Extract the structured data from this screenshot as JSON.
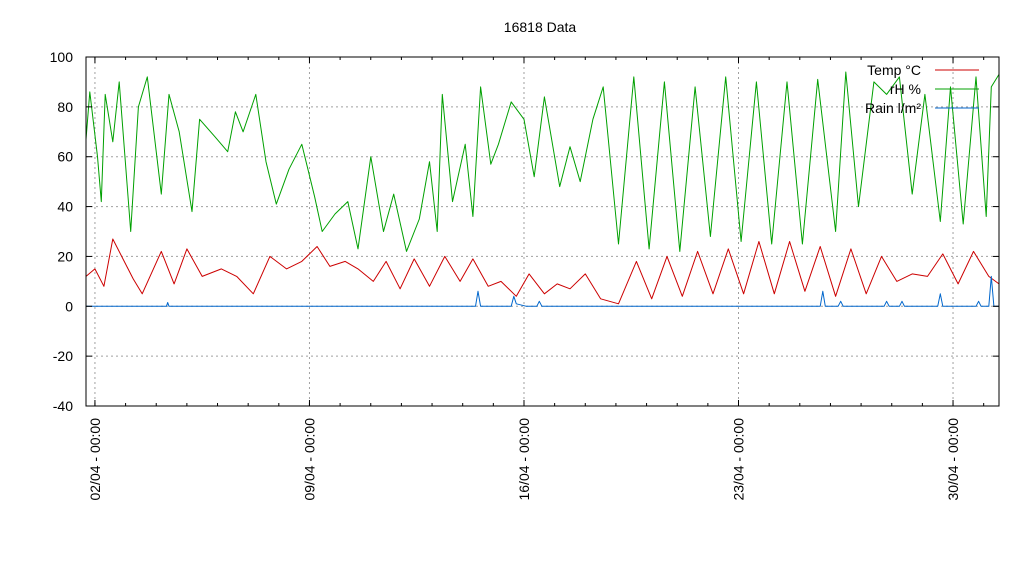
{
  "chart_data": {
    "type": "line",
    "title": "16818 Data",
    "xlabel": "",
    "ylabel": "",
    "ylim": [
      -40,
      100
    ],
    "yticks": [
      -40,
      -20,
      0,
      20,
      40,
      60,
      80,
      100
    ],
    "x_range": [
      "2022-04-01T17:00",
      "2022-05-01T12:00"
    ],
    "xticks": [
      {
        "date": "2022-04-02T00:00",
        "label": "02/04 - 00:00"
      },
      {
        "date": "2022-04-09T00:00",
        "label": "09/04 - 00:00"
      },
      {
        "date": "2022-04-16T00:00",
        "label": "16/04 - 00:00"
      },
      {
        "date": "2022-04-23T00:00",
        "label": "23/04 - 00:00"
      },
      {
        "date": "2022-04-30T00:00",
        "label": "30/04 - 00:00"
      }
    ],
    "grid": true,
    "legend_position": "top-right",
    "series": [
      {
        "name": "Temp °C",
        "color": "#cc0000",
        "points": [
          [
            "2022-04-01T17:00",
            12
          ],
          [
            "2022-04-02T00:00",
            15
          ],
          [
            "2022-04-02T07:00",
            8
          ],
          [
            "2022-04-02T14:00",
            27
          ],
          [
            "2022-04-03T06:00",
            11
          ],
          [
            "2022-04-03T13:00",
            5
          ],
          [
            "2022-04-04T04:00",
            22
          ],
          [
            "2022-04-04T14:00",
            9
          ],
          [
            "2022-04-05T00:00",
            23
          ],
          [
            "2022-04-05T12:00",
            12
          ],
          [
            "2022-04-06T03:00",
            15
          ],
          [
            "2022-04-06T15:00",
            12
          ],
          [
            "2022-04-07T04:00",
            5
          ],
          [
            "2022-04-07T17:00",
            20
          ],
          [
            "2022-04-08T06:00",
            15
          ],
          [
            "2022-04-08T18:00",
            18
          ],
          [
            "2022-04-09T06:00",
            24
          ],
          [
            "2022-04-09T16:00",
            16
          ],
          [
            "2022-04-10T04:00",
            18
          ],
          [
            "2022-04-10T14:00",
            15
          ],
          [
            "2022-04-11T02:00",
            10
          ],
          [
            "2022-04-11T12:00",
            18
          ],
          [
            "2022-04-11T23:00",
            7
          ],
          [
            "2022-04-12T10:00",
            19
          ],
          [
            "2022-04-12T22:00",
            8
          ],
          [
            "2022-04-13T10:00",
            20
          ],
          [
            "2022-04-13T22:00",
            10
          ],
          [
            "2022-04-14T08:00",
            19
          ],
          [
            "2022-04-14T20:00",
            8
          ],
          [
            "2022-04-15T06:00",
            10
          ],
          [
            "2022-04-15T18:00",
            4
          ],
          [
            "2022-04-16T04:00",
            13
          ],
          [
            "2022-04-16T16:00",
            5
          ],
          [
            "2022-04-17T02:00",
            9
          ],
          [
            "2022-04-17T12:00",
            7
          ],
          [
            "2022-04-18T00:00",
            13
          ],
          [
            "2022-04-18T12:00",
            3
          ],
          [
            "2022-04-19T02:00",
            1
          ],
          [
            "2022-04-19T16:00",
            18
          ],
          [
            "2022-04-20T04:00",
            3
          ],
          [
            "2022-04-20T16:00",
            20
          ],
          [
            "2022-04-21T04:00",
            4
          ],
          [
            "2022-04-21T16:00",
            22
          ],
          [
            "2022-04-22T04:00",
            5
          ],
          [
            "2022-04-22T16:00",
            23
          ],
          [
            "2022-04-23T04:00",
            5
          ],
          [
            "2022-04-23T16:00",
            26
          ],
          [
            "2022-04-24T04:00",
            5
          ],
          [
            "2022-04-24T16:00",
            26
          ],
          [
            "2022-04-25T04:00",
            6
          ],
          [
            "2022-04-25T16:00",
            24
          ],
          [
            "2022-04-26T04:00",
            4
          ],
          [
            "2022-04-26T16:00",
            23
          ],
          [
            "2022-04-27T04:00",
            5
          ],
          [
            "2022-04-27T16:00",
            20
          ],
          [
            "2022-04-28T04:00",
            10
          ],
          [
            "2022-04-28T16:00",
            13
          ],
          [
            "2022-04-29T04:00",
            12
          ],
          [
            "2022-04-29T16:00",
            21
          ],
          [
            "2022-04-30T04:00",
            9
          ],
          [
            "2022-04-30T16:00",
            22
          ],
          [
            "2022-05-01T04:00",
            12
          ],
          [
            "2022-05-01T12:00",
            9
          ]
        ]
      },
      {
        "name": "rH %",
        "color": "#00a000",
        "points": [
          [
            "2022-04-01T17:00",
            67
          ],
          [
            "2022-04-01T20:00",
            86
          ],
          [
            "2022-04-02T02:00",
            60
          ],
          [
            "2022-04-02T05:00",
            42
          ],
          [
            "2022-04-02T08:00",
            85
          ],
          [
            "2022-04-02T14:00",
            66
          ],
          [
            "2022-04-02T19:00",
            90
          ],
          [
            "2022-04-03T04:00",
            30
          ],
          [
            "2022-04-03T10:00",
            80
          ],
          [
            "2022-04-03T17:00",
            92
          ],
          [
            "2022-04-04T04:00",
            45
          ],
          [
            "2022-04-04T10:00",
            85
          ],
          [
            "2022-04-04T18:00",
            70
          ],
          [
            "2022-04-05T04:00",
            38
          ],
          [
            "2022-04-05T10:00",
            75
          ],
          [
            "2022-04-05T22:00",
            68
          ],
          [
            "2022-04-06T08:00",
            62
          ],
          [
            "2022-04-06T14:00",
            78
          ],
          [
            "2022-04-06T20:00",
            70
          ],
          [
            "2022-04-07T06:00",
            85
          ],
          [
            "2022-04-07T14:00",
            58
          ],
          [
            "2022-04-07T22:00",
            41
          ],
          [
            "2022-04-08T08:00",
            55
          ],
          [
            "2022-04-08T18:00",
            65
          ],
          [
            "2022-04-09T04:00",
            44
          ],
          [
            "2022-04-09T10:00",
            30
          ],
          [
            "2022-04-09T20:00",
            37
          ],
          [
            "2022-04-10T06:00",
            42
          ],
          [
            "2022-04-10T14:00",
            23
          ],
          [
            "2022-04-11T00:00",
            60
          ],
          [
            "2022-04-11T10:00",
            30
          ],
          [
            "2022-04-11T18:00",
            45
          ],
          [
            "2022-04-12T04:00",
            22
          ],
          [
            "2022-04-12T14:00",
            35
          ],
          [
            "2022-04-12T22:00",
            58
          ],
          [
            "2022-04-13T04:00",
            30
          ],
          [
            "2022-04-13T08:00",
            85
          ],
          [
            "2022-04-13T16:00",
            42
          ],
          [
            "2022-04-14T02:00",
            65
          ],
          [
            "2022-04-14T08:00",
            36
          ],
          [
            "2022-04-14T14:00",
            88
          ],
          [
            "2022-04-14T22:00",
            57
          ],
          [
            "2022-04-15T04:00",
            65
          ],
          [
            "2022-04-15T14:00",
            82
          ],
          [
            "2022-04-16T00:00",
            75
          ],
          [
            "2022-04-16T08:00",
            52
          ],
          [
            "2022-04-16T16:00",
            84
          ],
          [
            "2022-04-17T04:00",
            48
          ],
          [
            "2022-04-17T12:00",
            64
          ],
          [
            "2022-04-17T20:00",
            50
          ],
          [
            "2022-04-18T06:00",
            75
          ],
          [
            "2022-04-18T14:00",
            88
          ],
          [
            "2022-04-19T02:00",
            25
          ],
          [
            "2022-04-19T14:00",
            92
          ],
          [
            "2022-04-20T02:00",
            23
          ],
          [
            "2022-04-20T14:00",
            90
          ],
          [
            "2022-04-21T02:00",
            22
          ],
          [
            "2022-04-21T14:00",
            88
          ],
          [
            "2022-04-22T02:00",
            28
          ],
          [
            "2022-04-22T14:00",
            92
          ],
          [
            "2022-04-23T02:00",
            26
          ],
          [
            "2022-04-23T14:00",
            90
          ],
          [
            "2022-04-24T02:00",
            25
          ],
          [
            "2022-04-24T14:00",
            90
          ],
          [
            "2022-04-25T02:00",
            25
          ],
          [
            "2022-04-25T14:00",
            91
          ],
          [
            "2022-04-26T04:00",
            30
          ],
          [
            "2022-04-26T12:00",
            94
          ],
          [
            "2022-04-26T22:00",
            40
          ],
          [
            "2022-04-27T10:00",
            90
          ],
          [
            "2022-04-27T20:00",
            85
          ],
          [
            "2022-04-28T06:00",
            92
          ],
          [
            "2022-04-28T16:00",
            45
          ],
          [
            "2022-04-29T02:00",
            85
          ],
          [
            "2022-04-29T14:00",
            34
          ],
          [
            "2022-04-29T22:00",
            88
          ],
          [
            "2022-04-30T08:00",
            33
          ],
          [
            "2022-04-30T18:00",
            92
          ],
          [
            "2022-05-01T02:00",
            36
          ],
          [
            "2022-05-01T06:00",
            88
          ],
          [
            "2022-05-01T12:00",
            93
          ]
        ]
      },
      {
        "name": "Rain l/m²",
        "color": "#0066cc",
        "points": [
          [
            "2022-04-01T17:00",
            0
          ],
          [
            "2022-04-04T08:00",
            0
          ],
          [
            "2022-04-04T09:00",
            1.5
          ],
          [
            "2022-04-04T10:00",
            0
          ],
          [
            "2022-04-14T10:00",
            0
          ],
          [
            "2022-04-14T12:00",
            6
          ],
          [
            "2022-04-14T14:00",
            0
          ],
          [
            "2022-04-15T14:00",
            0
          ],
          [
            "2022-04-15T16:00",
            4
          ],
          [
            "2022-04-15T18:00",
            1
          ],
          [
            "2022-04-16T02:00",
            0
          ],
          [
            "2022-04-16T10:00",
            0
          ],
          [
            "2022-04-16T12:00",
            2
          ],
          [
            "2022-04-16T14:00",
            0
          ],
          [
            "2022-04-25T16:00",
            0
          ],
          [
            "2022-04-25T18:00",
            6
          ],
          [
            "2022-04-25T20:00",
            0
          ],
          [
            "2022-04-26T06:00",
            0
          ],
          [
            "2022-04-26T08:00",
            2
          ],
          [
            "2022-04-26T10:00",
            0
          ],
          [
            "2022-04-27T18:00",
            0
          ],
          [
            "2022-04-27T20:00",
            2
          ],
          [
            "2022-04-27T22:00",
            0
          ],
          [
            "2022-04-28T06:00",
            0
          ],
          [
            "2022-04-28T08:00",
            2
          ],
          [
            "2022-04-28T10:00",
            0
          ],
          [
            "2022-04-29T12:00",
            0
          ],
          [
            "2022-04-29T14:00",
            5
          ],
          [
            "2022-04-29T16:00",
            0
          ],
          [
            "2022-04-30T18:00",
            0
          ],
          [
            "2022-04-30T20:00",
            2
          ],
          [
            "2022-04-30T22:00",
            0
          ],
          [
            "2022-05-01T04:00",
            0
          ],
          [
            "2022-05-01T06:00",
            12
          ],
          [
            "2022-05-01T08:00",
            0
          ],
          [
            "2022-05-01T12:00",
            0
          ]
        ]
      }
    ]
  }
}
